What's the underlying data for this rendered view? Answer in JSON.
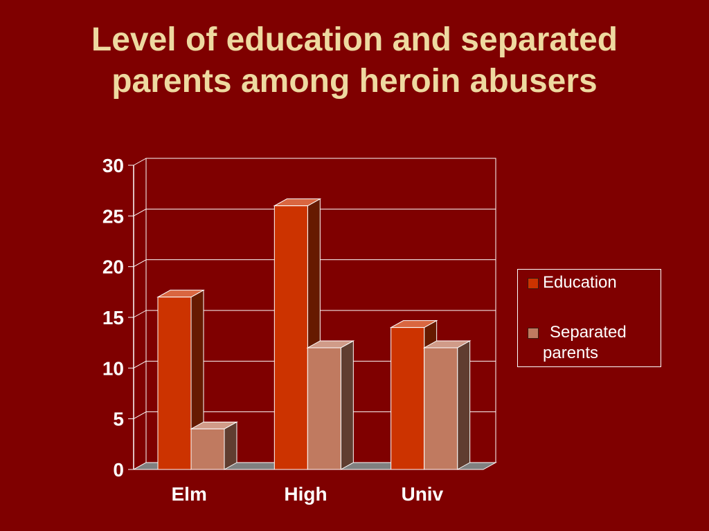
{
  "slide": {
    "title_lines": [
      "Level of education and separated",
      "parents among heroin abusers"
    ]
  },
  "chart_data": {
    "type": "bar",
    "style": "3d-clustered-column",
    "categories": [
      "Elm",
      "High",
      "Univ"
    ],
    "series": [
      {
        "name": "Education",
        "values": [
          17,
          26,
          14
        ],
        "color": "#cc3300"
      },
      {
        "name": "Separated parents",
        "values": [
          4,
          12,
          12
        ],
        "color": "#c07a60"
      }
    ],
    "ylim": [
      0,
      30
    ],
    "yticks": [
      "0",
      "5",
      "10",
      "15",
      "20",
      "25",
      "30"
    ],
    "grid": true,
    "legend_position": "right"
  },
  "colors": {
    "background": "#7f0000",
    "title": "#eed9a0",
    "axis_text": "#ffffff",
    "floor": "#808080"
  }
}
